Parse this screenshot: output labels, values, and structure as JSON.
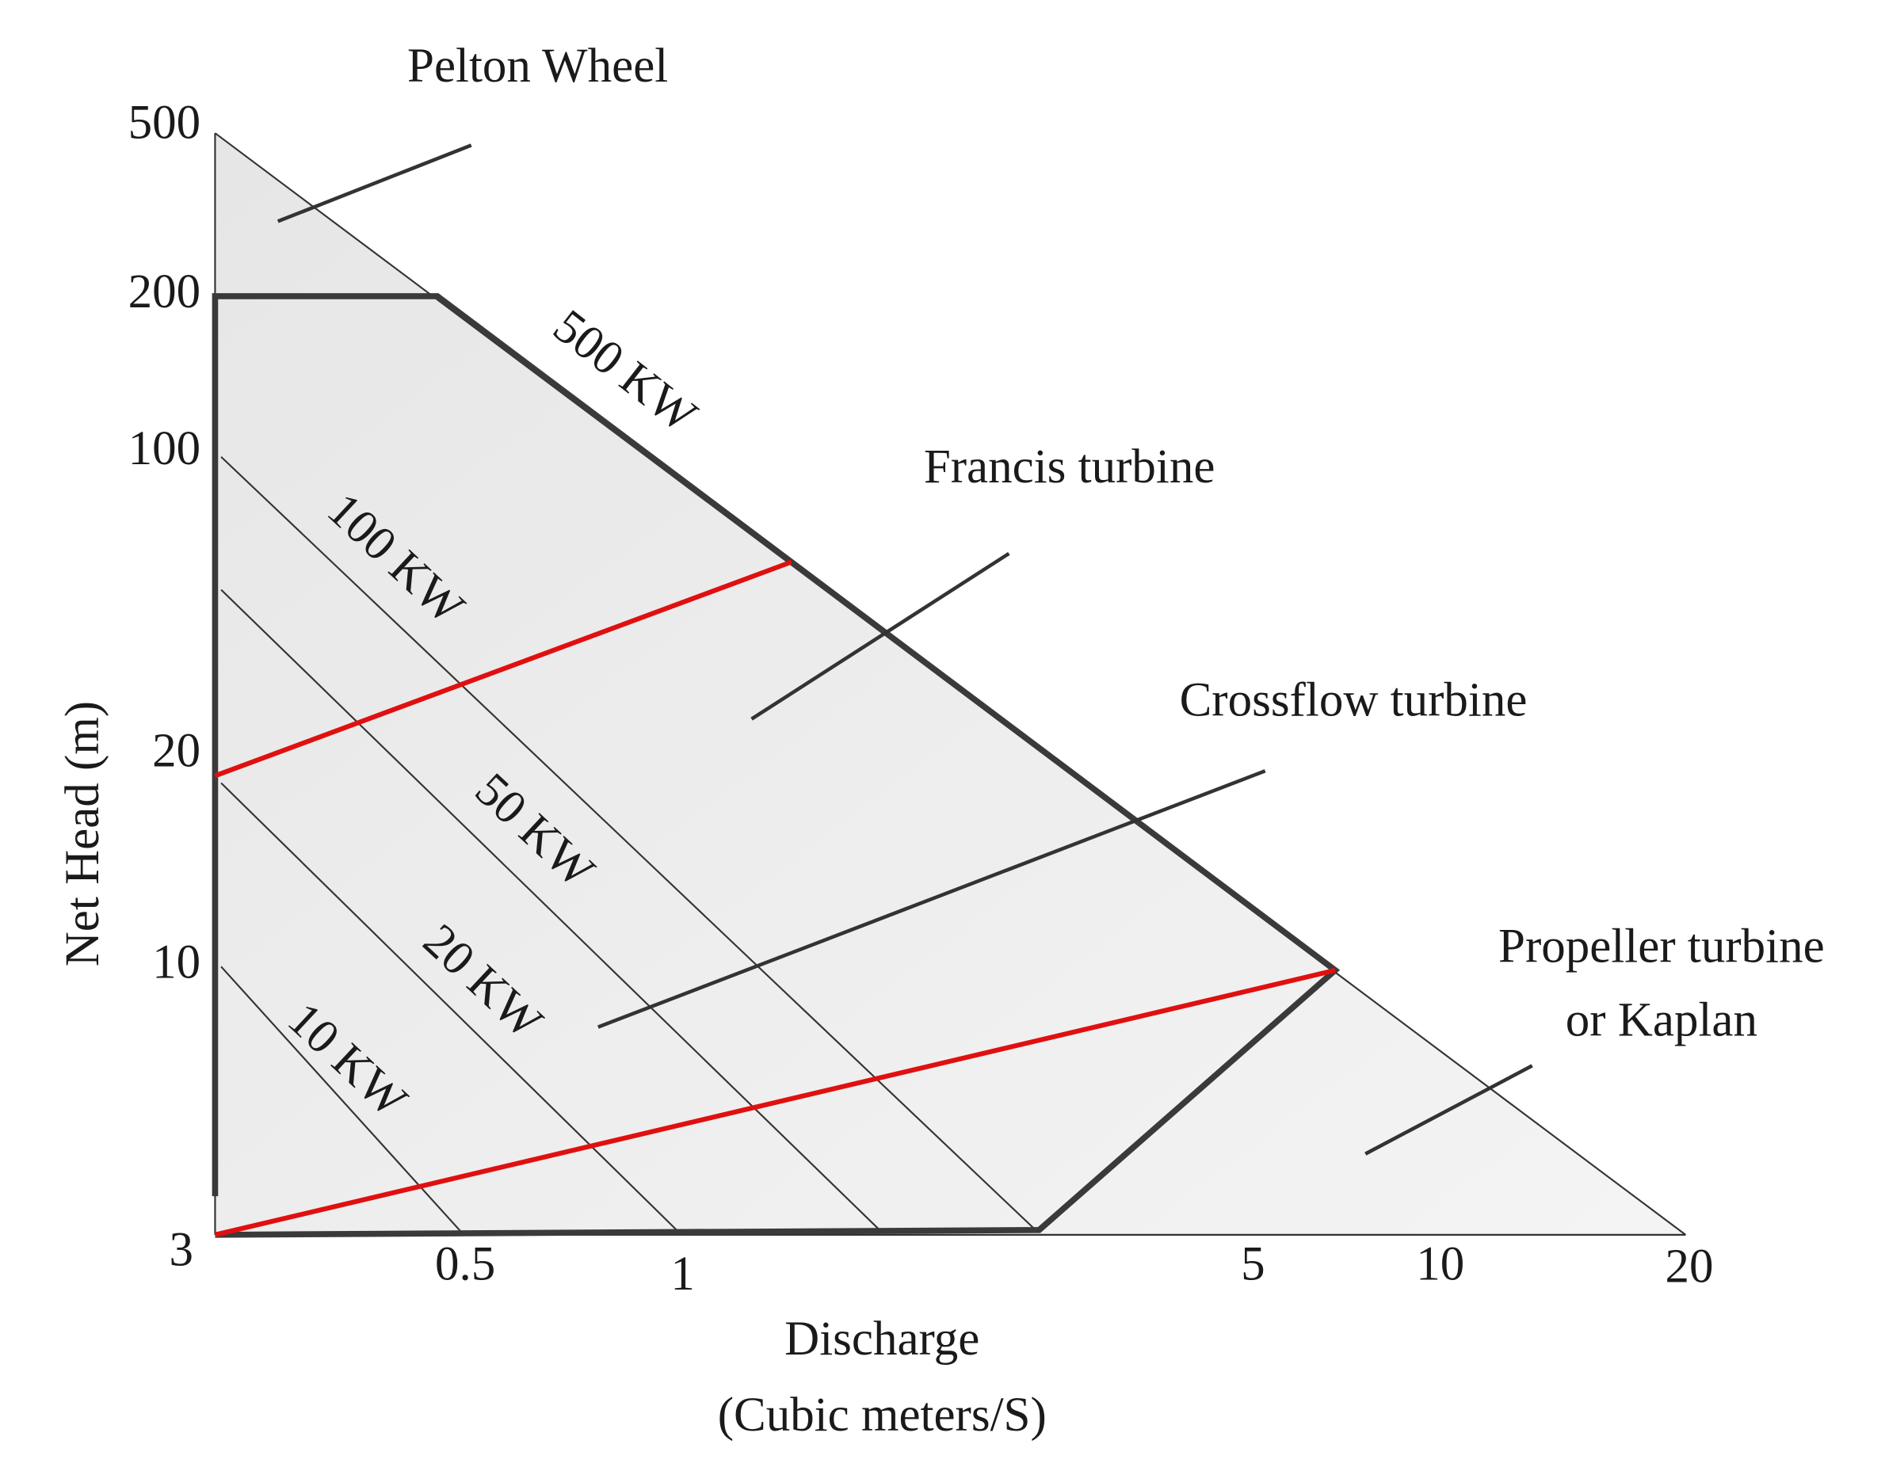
{
  "regions": [
    "Pelton Wheel",
    "Francis turbine",
    "Crossflow turbine",
    [
      "Propeller turbine",
      "or Kaplan"
    ]
  ],
  "power_labels": [
    "500 KW",
    "100 KW",
    "50 KW",
    "20 KW",
    "10 KW"
  ],
  "y_ticks": [
    "500",
    "200",
    "100",
    "20",
    "10",
    "3"
  ],
  "x_ticks": [
    "0.5",
    "1",
    "5",
    "10",
    "20"
  ],
  "y_axis_label": "Net Head (m)",
  "x_axis_label": [
    "Discharge",
    "(Cubic meters/S)"
  ]
}
